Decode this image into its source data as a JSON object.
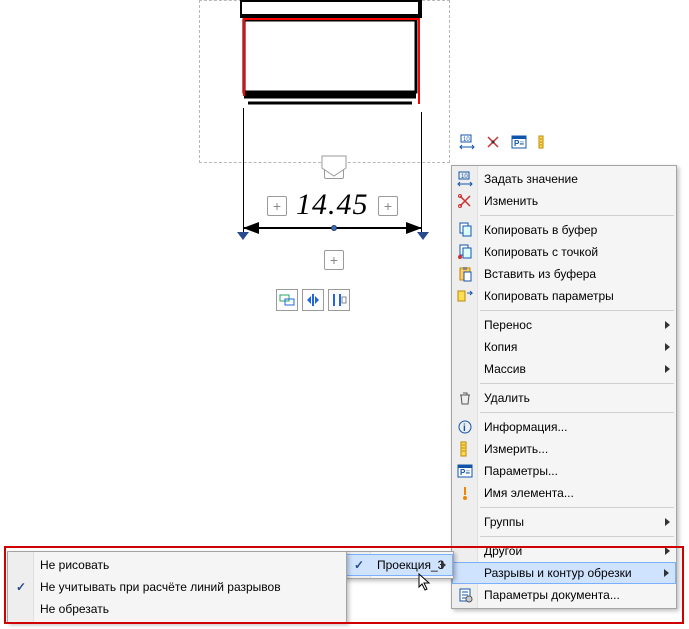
{
  "dimension": {
    "value": "14.45"
  },
  "toolbar": {
    "icons": [
      "set-value-icon",
      "scissors-icon",
      "properties-icon",
      "ruler-icon"
    ]
  },
  "context_menu": {
    "items": [
      {
        "icon": "set-value-icon",
        "label": "Задать значение"
      },
      {
        "icon": "scissors-icon",
        "label": "Изменить"
      },
      {
        "sep": true
      },
      {
        "icon": "copy-icon",
        "label": "Копировать в буфер"
      },
      {
        "icon": "copy-point-icon",
        "label": "Копировать с точкой"
      },
      {
        "icon": "paste-icon",
        "label": "Вставить из буфера"
      },
      {
        "icon": "copy-params-icon",
        "label": "Копировать параметры"
      },
      {
        "sep": true
      },
      {
        "label": "Перенос",
        "submenu": true
      },
      {
        "label": "Копия",
        "submenu": true
      },
      {
        "label": "Массив",
        "submenu": true
      },
      {
        "sep": true
      },
      {
        "icon": "trash-icon",
        "label": "Удалить"
      },
      {
        "sep": true
      },
      {
        "icon": "info-icon",
        "label": "Информация..."
      },
      {
        "icon": "ruler-icon",
        "label": "Измерить..."
      },
      {
        "icon": "properties-icon",
        "label": "Параметры..."
      },
      {
        "icon": "name-icon",
        "label": "Имя элемента..."
      },
      {
        "sep": true
      },
      {
        "label": "Группы",
        "submenu": true
      },
      {
        "sep": true
      },
      {
        "label": "Другой",
        "submenu": true
      },
      {
        "label": "Разрывы и контур обрезки",
        "submenu": true,
        "highlight": true
      },
      {
        "icon": "doc-params-icon",
        "label": "Параметры документа..."
      }
    ]
  },
  "submenu_projection": {
    "label": "Проекция_3",
    "highlight": true
  },
  "submenu_breaks": {
    "items": [
      {
        "label": "Не рисовать"
      },
      {
        "label": "Не учитывать при расчёте линий разрывов",
        "checked": true
      },
      {
        "label": "Не обрезать"
      }
    ]
  },
  "colors": {
    "red": "#ff0000",
    "highlight_bg": "#cfe3ff",
    "highlight_border": "#7ab0ff",
    "red_outline": "#d10000"
  }
}
